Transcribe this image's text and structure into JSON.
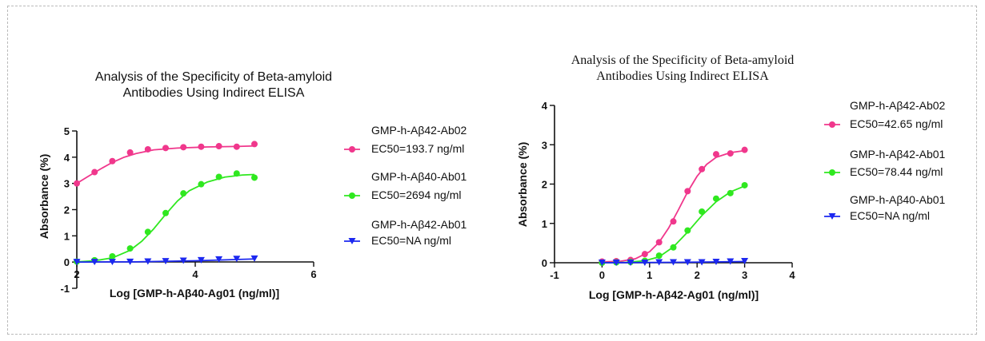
{
  "chart_data": [
    {
      "type": "scatter",
      "title_lines": [
        "Analysis of the Specificity of Beta-amyloid",
        "Antibodies Using Indirect ELISA"
      ],
      "xlabel": "Log [GMP-h-Aβ40-Ag01 (ng/ml)]",
      "ylabel": "Absorbance (%)",
      "xlim": [
        2,
        6
      ],
      "ylim": [
        -1,
        5
      ],
      "xticks": [
        2,
        4,
        6
      ],
      "yticks": [
        -1,
        0,
        1,
        2,
        3,
        4,
        5
      ],
      "grid": false,
      "legend_position": "right",
      "series": [
        {
          "name": "GMP-h-Aβ42-Ab02",
          "ec50": "EC50=193.7 ng/ml",
          "color": "#f0378c",
          "marker": "circle",
          "x": [
            2.0,
            2.3,
            2.6,
            2.9,
            3.2,
            3.5,
            3.8,
            4.1,
            4.4,
            4.7,
            5.0
          ],
          "y": [
            3.0,
            3.43,
            3.85,
            4.18,
            4.3,
            4.35,
            4.38,
            4.4,
            4.42,
            4.4,
            4.5
          ],
          "fit": [
            [
              2.0,
              3.0
            ],
            [
              2.2,
              3.28
            ],
            [
              2.4,
              3.55
            ],
            [
              2.6,
              3.8
            ],
            [
              2.8,
              4.0
            ],
            [
              3.0,
              4.14
            ],
            [
              3.3,
              4.28
            ],
            [
              3.7,
              4.35
            ],
            [
              4.2,
              4.39
            ],
            [
              4.7,
              4.41
            ],
            [
              5.0,
              4.43
            ]
          ]
        },
        {
          "name": "GMP-h-Aβ40-Ab01",
          "ec50": "EC50=2694 ng/ml",
          "color": "#2fe81f",
          "marker": "circle",
          "x": [
            2.0,
            2.3,
            2.6,
            2.9,
            3.2,
            3.5,
            3.8,
            4.1,
            4.4,
            4.7,
            5.0
          ],
          "y": [
            0.02,
            0.07,
            0.22,
            0.52,
            1.15,
            1.87,
            2.62,
            2.97,
            3.25,
            3.38,
            3.22
          ],
          "fit": [
            [
              2.0,
              0.01
            ],
            [
              2.3,
              0.05
            ],
            [
              2.6,
              0.16
            ],
            [
              2.9,
              0.45
            ],
            [
              3.1,
              0.8
            ],
            [
              3.3,
              1.27
            ],
            [
              3.5,
              1.82
            ],
            [
              3.7,
              2.33
            ],
            [
              3.9,
              2.72
            ],
            [
              4.2,
              3.05
            ],
            [
              4.5,
              3.24
            ],
            [
              4.8,
              3.32
            ],
            [
              5.0,
              3.34
            ]
          ]
        },
        {
          "name": "GMP-h-Aβ42-Ab01",
          "ec50": "EC50=NA ng/ml",
          "color": "#1c28f0",
          "marker": "triangle-down",
          "x": [
            2.0,
            2.3,
            2.6,
            2.9,
            3.2,
            3.5,
            3.8,
            4.1,
            4.4,
            4.7,
            5.0
          ],
          "y": [
            0.0,
            0.0,
            0.0,
            0.01,
            0.02,
            0.03,
            0.05,
            0.07,
            0.1,
            0.12,
            0.13
          ],
          "fit": [
            [
              2.0,
              0.0
            ],
            [
              3.0,
              0.01
            ],
            [
              4.0,
              0.05
            ],
            [
              5.0,
              0.12
            ]
          ]
        }
      ]
    },
    {
      "type": "scatter",
      "title_lines": [
        "Analysis of the Specificity of Beta-amyloid",
        "Antibodies Using Indirect ELISA"
      ],
      "xlabel": "Log [GMP-h-Aβ42-Ag01 (ng/ml)]",
      "ylabel": "Absorbance (%)",
      "xlim": [
        -1,
        4
      ],
      "ylim": [
        0,
        4
      ],
      "xticks": [
        -1,
        0,
        1,
        2,
        3,
        4
      ],
      "yticks": [
        0,
        1,
        2,
        3,
        4
      ],
      "grid": false,
      "legend_position": "right",
      "series": [
        {
          "name": "GMP-h-Aβ42-Ab02",
          "ec50": "EC50=42.65 ng/ml",
          "color": "#f0378c",
          "marker": "circle",
          "x": [
            0.0,
            0.3,
            0.6,
            0.9,
            1.2,
            1.5,
            1.8,
            2.1,
            2.4,
            2.7,
            3.0
          ],
          "y": [
            0.03,
            0.04,
            0.07,
            0.22,
            0.52,
            1.05,
            1.82,
            2.38,
            2.76,
            2.78,
            2.87
          ],
          "fit": [
            [
              0.0,
              0.02
            ],
            [
              0.4,
              0.04
            ],
            [
              0.7,
              0.1
            ],
            [
              1.0,
              0.28
            ],
            [
              1.2,
              0.52
            ],
            [
              1.4,
              0.88
            ],
            [
              1.6,
              1.33
            ],
            [
              1.8,
              1.8
            ],
            [
              2.0,
              2.2
            ],
            [
              2.2,
              2.5
            ],
            [
              2.4,
              2.68
            ],
            [
              2.7,
              2.8
            ],
            [
              3.0,
              2.85
            ]
          ]
        },
        {
          "name": "GMP-h-Aβ42-Ab01",
          "ec50": "EC50=78.44 ng/ml",
          "color": "#2fe81f",
          "marker": "circle",
          "x": [
            0.0,
            0.3,
            0.6,
            0.9,
            1.2,
            1.5,
            1.8,
            2.1,
            2.4,
            2.7,
            3.0
          ],
          "y": [
            0.0,
            0.01,
            0.02,
            0.05,
            0.18,
            0.39,
            0.82,
            1.3,
            1.63,
            1.77,
            1.97
          ],
          "fit": [
            [
              0.0,
              0.0
            ],
            [
              0.5,
              0.01
            ],
            [
              0.9,
              0.05
            ],
            [
              1.2,
              0.15
            ],
            [
              1.5,
              0.4
            ],
            [
              1.8,
              0.78
            ],
            [
              2.1,
              1.2
            ],
            [
              2.4,
              1.55
            ],
            [
              2.7,
              1.8
            ],
            [
              3.0,
              1.95
            ]
          ]
        },
        {
          "name": "GMP-h-Aβ40-Ab01",
          "ec50": "EC50=NA ng/ml",
          "color": "#1c28f0",
          "marker": "triangle-down",
          "x": [
            0.0,
            0.3,
            0.6,
            0.9,
            1.2,
            1.5,
            1.8,
            2.1,
            2.4,
            2.7,
            3.0
          ],
          "y": [
            0.0,
            0.0,
            0.0,
            0.0,
            0.01,
            0.01,
            0.01,
            0.01,
            0.02,
            0.03,
            0.04
          ],
          "fit": [
            [
              0.0,
              0.0
            ],
            [
              1.5,
              0.01
            ],
            [
              3.0,
              0.03
            ]
          ]
        }
      ]
    }
  ]
}
